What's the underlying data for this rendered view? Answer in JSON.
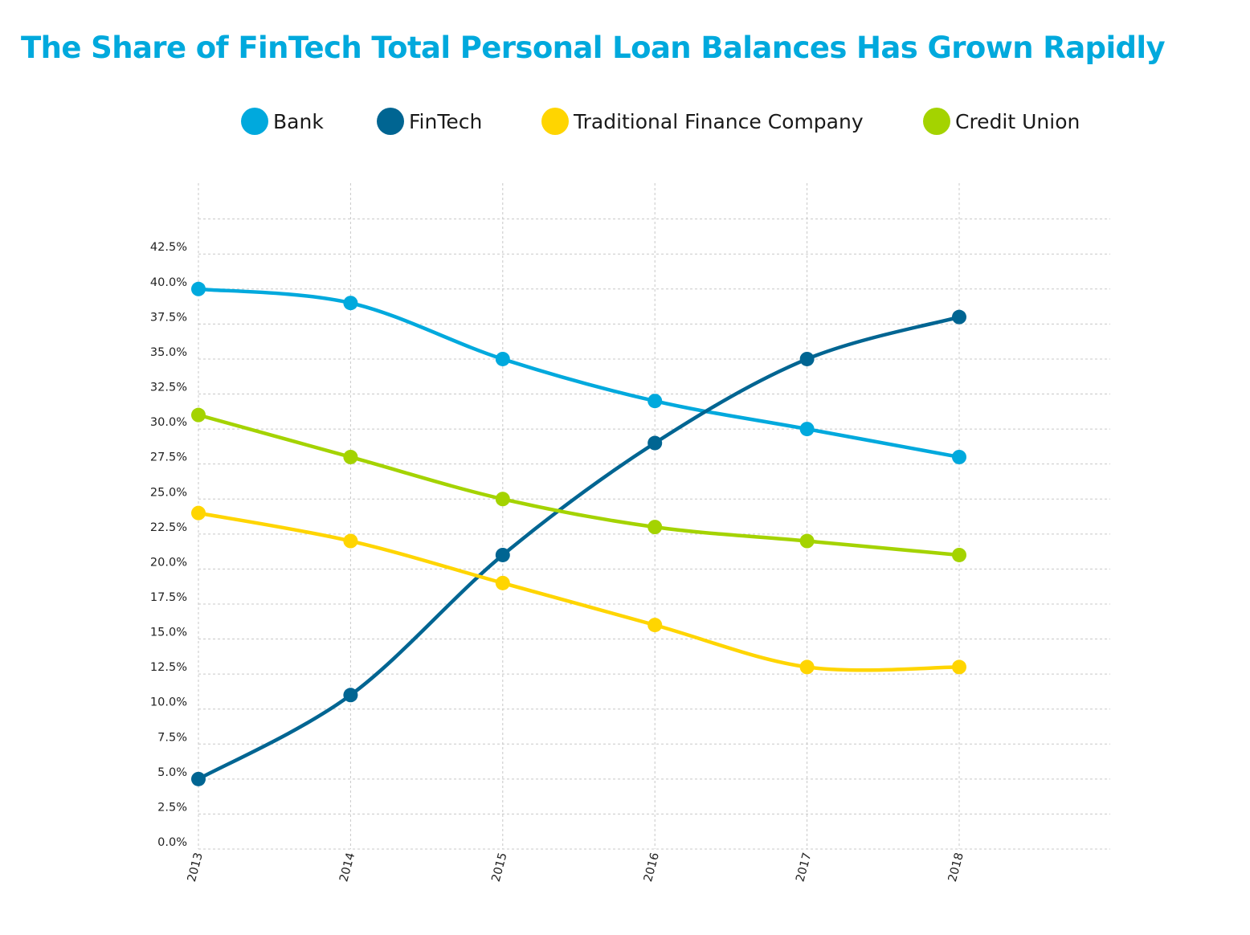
{
  "chart_data": {
    "type": "line",
    "title": "The Share of FinTech Total Personal Loan Balances Has Grown Rapidly",
    "categories": [
      "2013",
      "2014",
      "2015",
      "2016",
      "2017",
      "2018"
    ],
    "series": [
      {
        "name": "Bank",
        "color": "#00a9dd",
        "values": [
          40.0,
          39.0,
          35.0,
          32.0,
          30.0,
          28.0
        ]
      },
      {
        "name": "FinTech",
        "color": "#006592",
        "values": [
          5.0,
          11.0,
          21.0,
          29.0,
          35.0,
          38.0
        ]
      },
      {
        "name": "Traditional Finance Company",
        "color": "#ffd500",
        "values": [
          24.0,
          22.0,
          19.0,
          16.0,
          13.0,
          13.0
        ]
      },
      {
        "name": "Credit Union",
        "color": "#a4d300",
        "values": [
          31.0,
          28.0,
          25.0,
          23.0,
          22.0,
          21.0
        ]
      }
    ],
    "y_ticks": [
      "0.0%",
      "2.5%",
      "5.0%",
      "7.5%",
      "10.0%",
      "12.5%",
      "15.0%",
      "17.5%",
      "20.0%",
      "22.5%",
      "25.0%",
      "27.5%",
      "30.0%",
      "32.5%",
      "35.0%",
      "37.5%",
      "40.0%",
      "42.5%"
    ],
    "ylim": [
      0,
      45
    ],
    "xlabel": "",
    "ylabel": "",
    "grid": true,
    "legend_position": "top-center",
    "title_color": "#00a9dd"
  }
}
